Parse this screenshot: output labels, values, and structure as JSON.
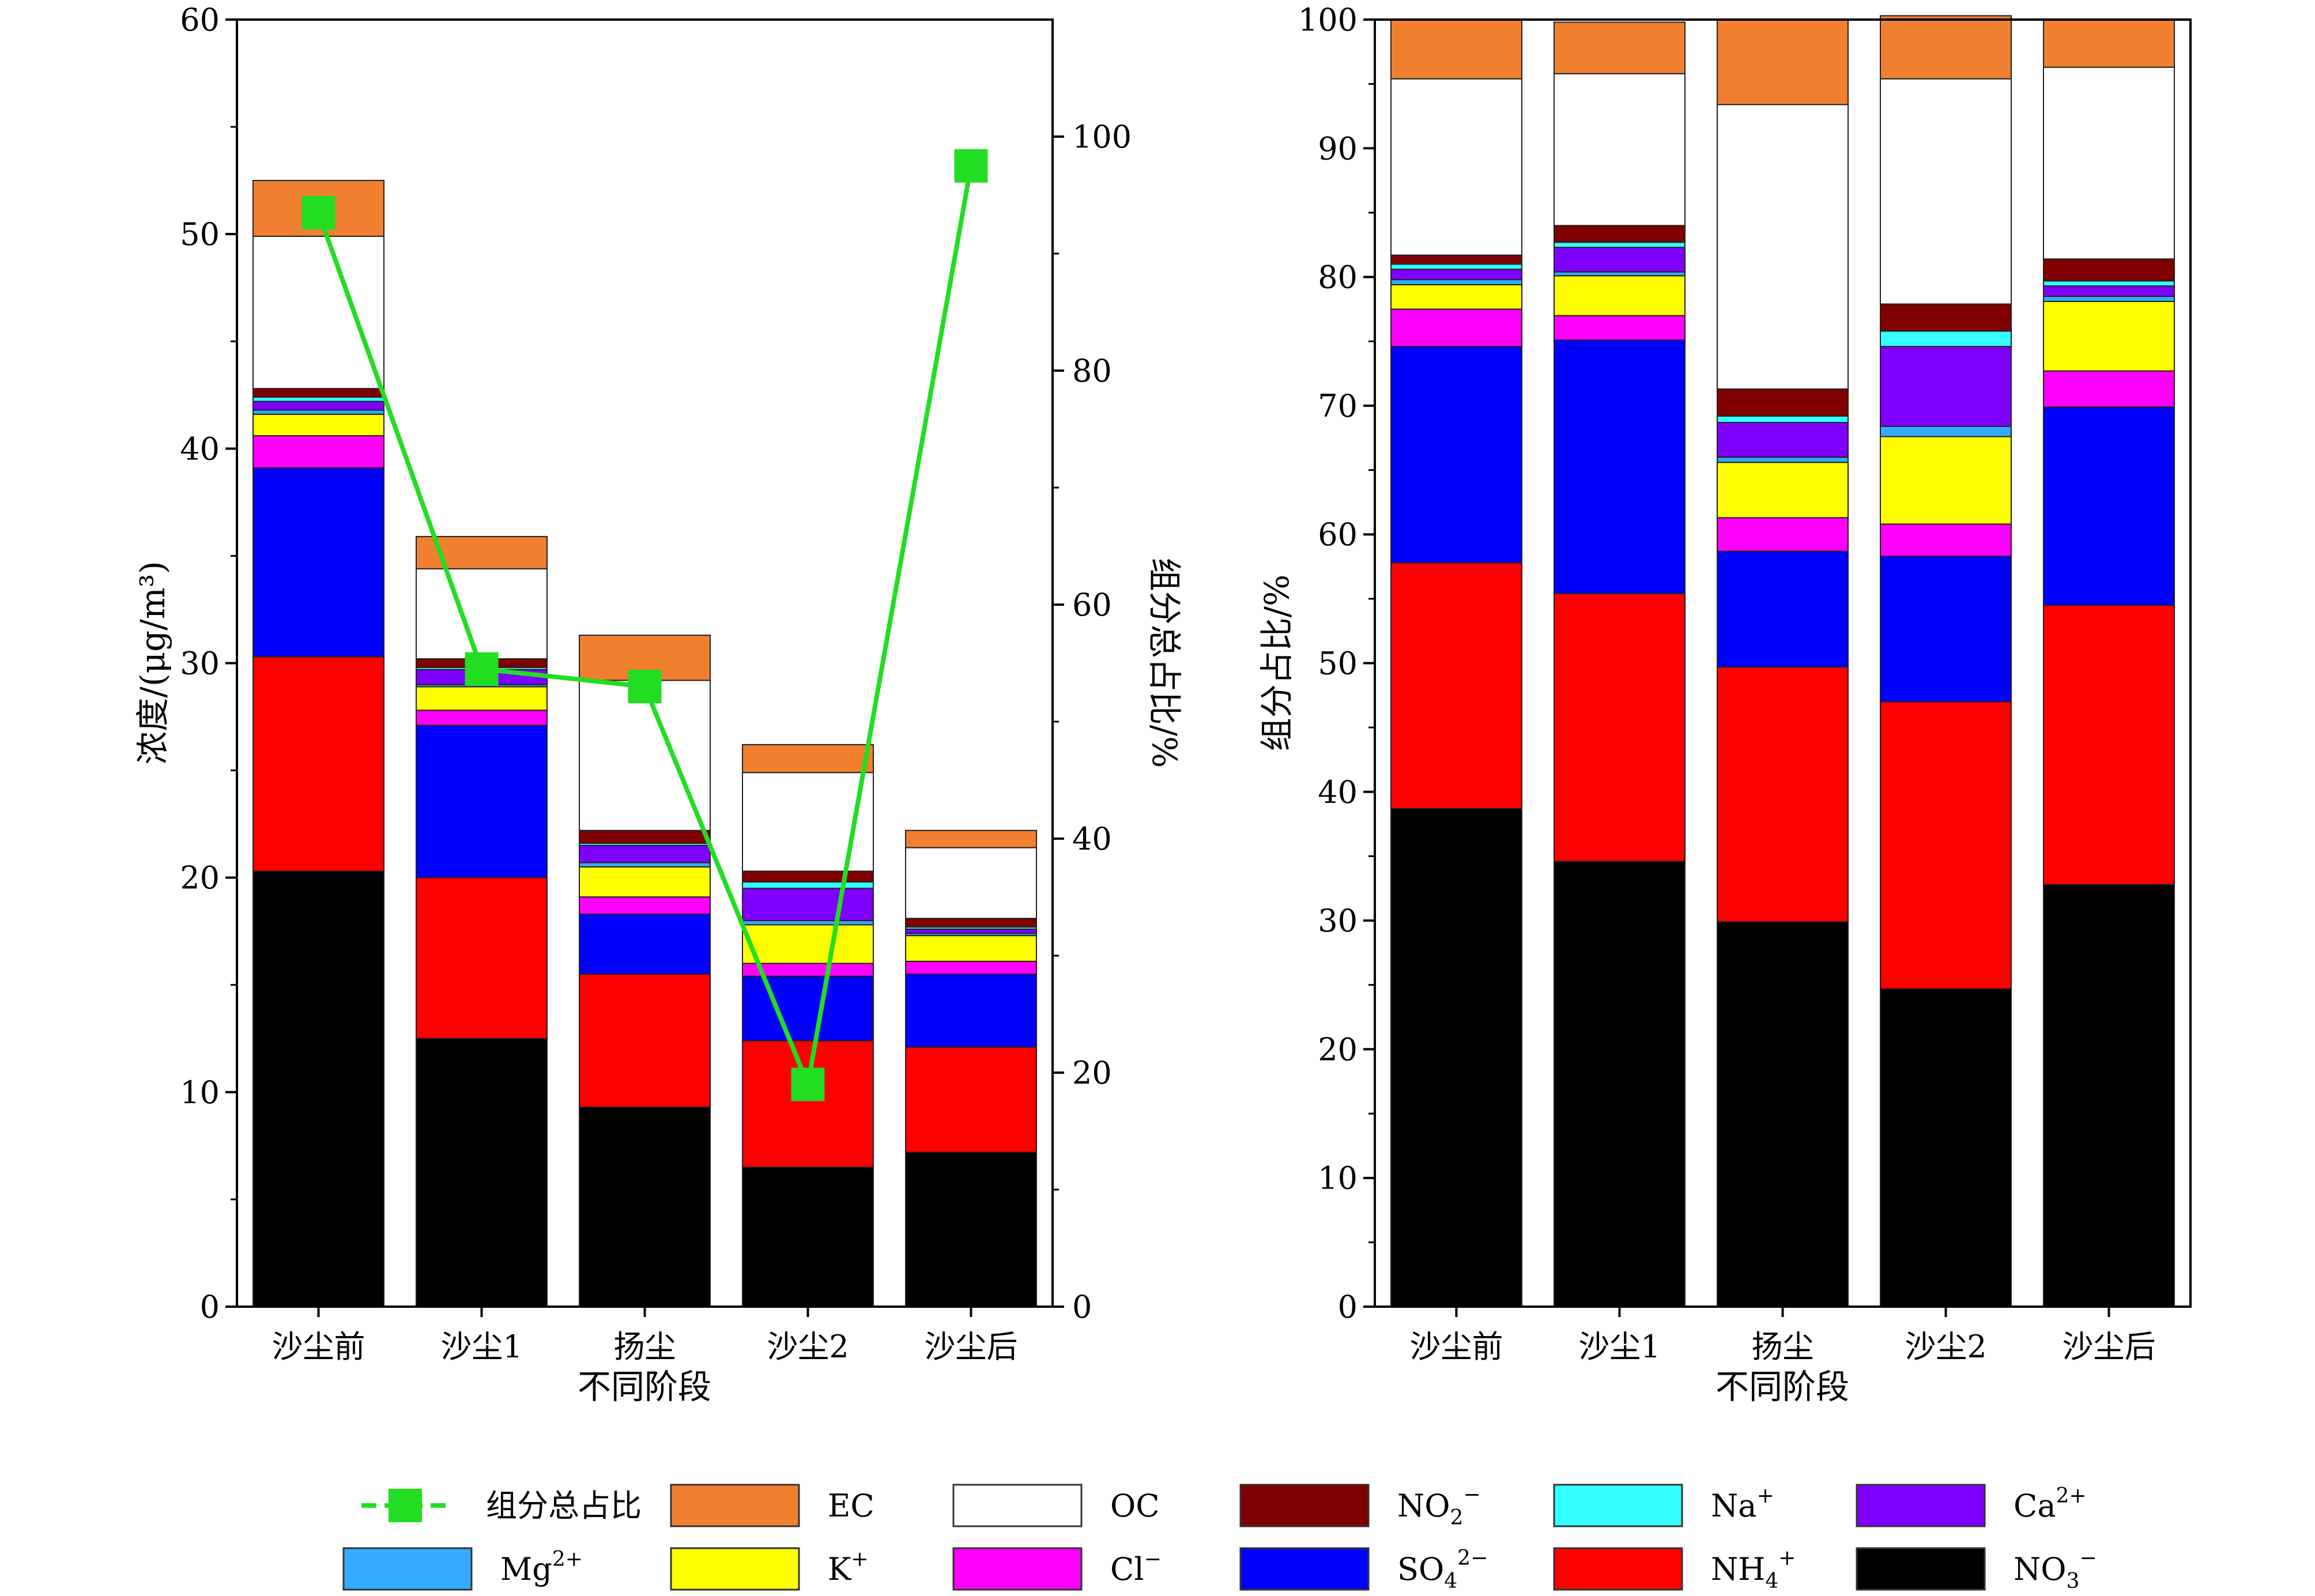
{
  "chart_data": [
    {
      "type": "bar",
      "stacked": true,
      "categories": [
        "沙尘前",
        "沙尘1",
        "扬尘",
        "沙尘2",
        "沙尘后"
      ],
      "xlabel": "不同阶段",
      "ylabel": "浓度/(μg/m³)",
      "ylim": [
        0,
        60
      ],
      "yticks": [
        "0",
        "10",
        "20",
        "30",
        "40",
        "50",
        "60"
      ],
      "y2label": "组分总占比/%",
      "y2lim": [
        0,
        110
      ],
      "y2ticks": [
        "0",
        "20",
        "40",
        "60",
        "80",
        "100"
      ],
      "series": [
        {
          "name": "NO₃⁻",
          "color": "#000000",
          "values": [
            20.3,
            12.5,
            9.3,
            6.5,
            7.2
          ]
        },
        {
          "name": "NH₄⁺",
          "color": "#ff0000",
          "values": [
            10.0,
            7.5,
            6.2,
            5.9,
            4.9
          ]
        },
        {
          "name": "SO₄²⁻",
          "color": "#0000ff",
          "values": [
            8.8,
            7.1,
            2.8,
            3.0,
            3.4
          ]
        },
        {
          "name": "Cl⁻",
          "color": "#ff00ff",
          "values": [
            1.5,
            0.7,
            0.8,
            0.6,
            0.6
          ]
        },
        {
          "name": "K⁺",
          "color": "#ffff00",
          "values": [
            1.0,
            1.1,
            1.4,
            1.8,
            1.2
          ]
        },
        {
          "name": "Mg²⁺",
          "color": "#33aaff",
          "values": [
            0.2,
            0.1,
            0.2,
            0.2,
            0.1
          ]
        },
        {
          "name": "Ca²⁺",
          "color": "#8000ff",
          "values": [
            0.4,
            0.7,
            0.8,
            1.5,
            0.2
          ]
        },
        {
          "name": "Na⁺",
          "color": "#33ffff",
          "values": [
            0.2,
            0.1,
            0.1,
            0.3,
            0.1
          ]
        },
        {
          "name": "NO₂⁻",
          "color": "#800000",
          "values": [
            0.4,
            0.4,
            0.6,
            0.5,
            0.4
          ]
        },
        {
          "name": "OC",
          "color": "#ffffff",
          "values": [
            7.1,
            4.2,
            7.0,
            4.6,
            3.3
          ]
        },
        {
          "name": "EC",
          "color": "#f08030",
          "values": [
            2.6,
            1.5,
            2.1,
            1.3,
            0.8
          ]
        }
      ],
      "line_series": {
        "name": "组分总占比",
        "axis": "right",
        "color": "#22dd22",
        "values": [
          93.5,
          54.5,
          53.0,
          19.0,
          97.5
        ]
      }
    },
    {
      "type": "bar",
      "stacked": true,
      "categories": [
        "沙尘前",
        "沙尘1",
        "扬尘",
        "沙尘2",
        "沙尘后"
      ],
      "xlabel": "不同阶段",
      "ylabel": "组分占比/%",
      "ylim": [
        0,
        100
      ],
      "yticks": [
        "0",
        "10",
        "20",
        "30",
        "40",
        "50",
        "60",
        "70",
        "80",
        "90",
        "100"
      ],
      "series": [
        {
          "name": "NO₃⁻",
          "color": "#000000",
          "values": [
            38.7,
            34.6,
            29.9,
            24.7,
            32.8
          ]
        },
        {
          "name": "NH₄⁺",
          "color": "#ff0000",
          "values": [
            19.1,
            20.8,
            19.8,
            22.3,
            21.7
          ]
        },
        {
          "name": "SO₄²⁻",
          "color": "#0000ff",
          "values": [
            16.8,
            19.7,
            9.0,
            11.3,
            15.4
          ]
        },
        {
          "name": "Cl⁻",
          "color": "#ff00ff",
          "values": [
            2.9,
            1.9,
            2.6,
            2.5,
            2.8
          ]
        },
        {
          "name": "K⁺",
          "color": "#ffff00",
          "values": [
            1.9,
            3.1,
            4.3,
            6.8,
            5.4
          ]
        },
        {
          "name": "Mg²⁺",
          "color": "#33aaff",
          "values": [
            0.4,
            0.3,
            0.4,
            0.8,
            0.4
          ]
        },
        {
          "name": "Ca²⁺",
          "color": "#8000ff",
          "values": [
            0.8,
            1.9,
            2.7,
            6.2,
            0.8
          ]
        },
        {
          "name": "Na⁺",
          "color": "#33ffff",
          "values": [
            0.4,
            0.4,
            0.5,
            1.2,
            0.4
          ]
        },
        {
          "name": "NO₂⁻",
          "color": "#800000",
          "values": [
            0.7,
            1.3,
            2.1,
            2.1,
            1.7
          ]
        },
        {
          "name": "OC",
          "color": "#ffffff",
          "values": [
            13.7,
            11.8,
            22.1,
            17.5,
            14.9
          ]
        },
        {
          "name": "EC",
          "color": "#f08030",
          "values": [
            4.6,
            4.0,
            6.6,
            4.9,
            3.7
          ]
        }
      ]
    }
  ],
  "legend": [
    {
      "key": "line",
      "label": "组分总占比",
      "color": "#22dd22"
    },
    {
      "key": "EC",
      "label": "EC",
      "color": "#f08030"
    },
    {
      "key": "OC",
      "label": "OC",
      "color": "#ffffff"
    },
    {
      "key": "NO2",
      "label": "NO",
      "sub": "2",
      "sup": "−",
      "color": "#800000"
    },
    {
      "key": "Na",
      "label": "Na",
      "sup": "+",
      "color": "#33ffff"
    },
    {
      "key": "Ca",
      "label": "Ca",
      "sup": "2+",
      "color": "#8000ff"
    },
    {
      "key": "Mg",
      "label": "Mg",
      "sup": "2+",
      "color": "#33aaff"
    },
    {
      "key": "K",
      "label": "K",
      "sup": "+",
      "color": "#ffff00"
    },
    {
      "key": "Cl",
      "label": "Cl",
      "sup": "−",
      "color": "#ff00ff"
    },
    {
      "key": "SO4",
      "label": "SO",
      "sub": "4",
      "sup": "2−",
      "color": "#0000ff"
    },
    {
      "key": "NH4",
      "label": "NH",
      "sub": "4",
      "sup": "+",
      "color": "#ff0000"
    },
    {
      "key": "NO3",
      "label": "NO",
      "sub": "3",
      "sup": "−",
      "color": "#000000"
    }
  ]
}
